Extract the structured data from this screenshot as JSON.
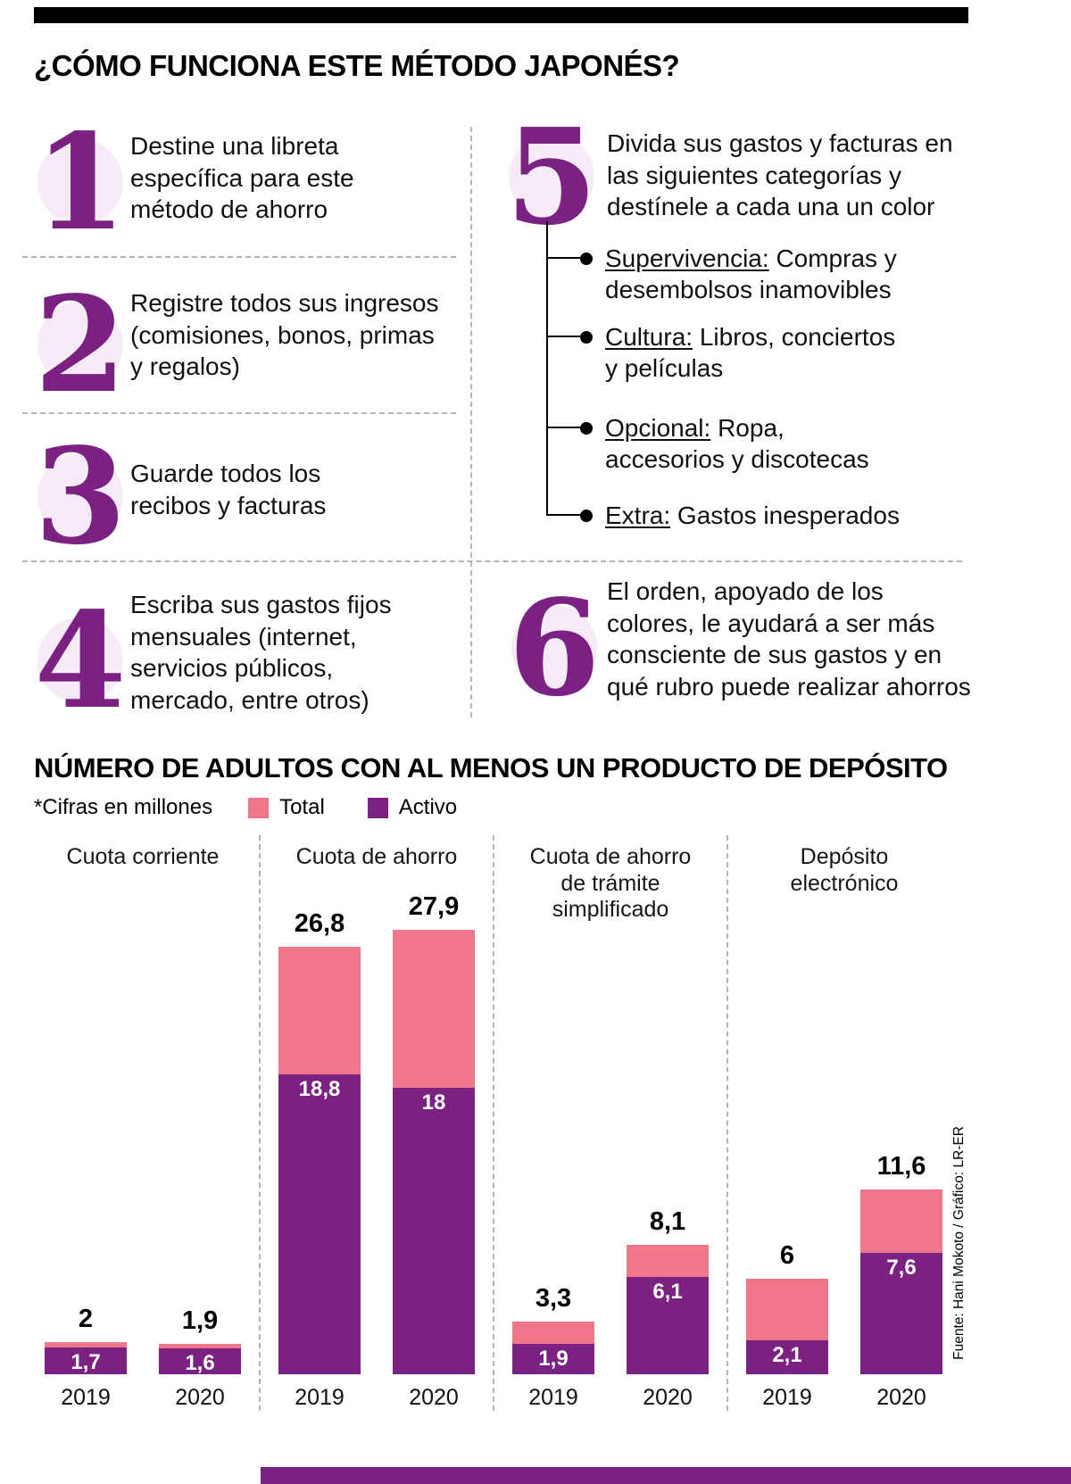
{
  "header": {
    "title": "¿CÓMO FUNCIONA ESTE MÉTODO JAPONÉS?"
  },
  "steps": [
    {
      "num": "1",
      "text": "Destine una libreta específica para este método de ahorro"
    },
    {
      "num": "2",
      "text": "Registre todos sus ingresos (comisiones, bonos, primas y regalos)"
    },
    {
      "num": "3",
      "text": "Guarde todos los recibos y facturas"
    },
    {
      "num": "4",
      "text": "Escriba sus gastos fijos mensuales (internet, servicios públicos, mercado, entre otros)"
    },
    {
      "num": "5",
      "text": "Divida sus gastos y facturas en las siguientes categorías y destínele a cada una un color",
      "bullets": [
        {
          "label": "Supervivencia:",
          "text": "Compras y desembolsos inamovibles"
        },
        {
          "label": "Cultura:",
          "text": "Libros, conciertos y películas"
        },
        {
          "label": "Opcional:",
          "text": "Ropa, accesorios y discotecas"
        },
        {
          "label": "Extra:",
          "text": "Gastos inesperados"
        }
      ]
    },
    {
      "num": "6",
      "text": "El orden, apoyado de los colores, le ayudará a ser más consciente de sus gastos y en qué rubro puede realizar ahorros"
    }
  ],
  "chart_data": {
    "type": "bar",
    "title": "NÚMERO DE ADULTOS CON AL MENOS UN PRODUCTO DE DEPÓSITO",
    "note": "*Cifras en millones",
    "legend": [
      {
        "name": "Total",
        "color": "#f0768b"
      },
      {
        "name": "Activo",
        "color": "#7a2182"
      }
    ],
    "legend_position": "top",
    "grid": false,
    "ylim": [
      0,
      28
    ],
    "decimal_separator": ",",
    "groups": [
      {
        "category": "Cuota corriente",
        "bars": [
          {
            "year": "2019",
            "total": 2,
            "activo": 1.7
          },
          {
            "year": "2020",
            "total": 1.9,
            "activo": 1.6
          }
        ]
      },
      {
        "category": "Cuota de ahorro",
        "bars": [
          {
            "year": "2019",
            "total": 26.8,
            "activo": 18.8
          },
          {
            "year": "2020",
            "total": 27.9,
            "activo": 18
          }
        ]
      },
      {
        "category": "Cuota de ahorro de trámite simplificado",
        "bars": [
          {
            "year": "2019",
            "total": 3.3,
            "activo": 1.9
          },
          {
            "year": "2020",
            "total": 8.1,
            "activo": 6.1
          }
        ]
      },
      {
        "category": "Depósito electrónico",
        "bars": [
          {
            "year": "2019",
            "total": 6,
            "activo": 2.1
          },
          {
            "year": "2020",
            "total": 11.6,
            "activo": 7.6
          }
        ]
      }
    ]
  },
  "source": "Fuente: Hani Mokoto / Gráfico: LR-ER",
  "colors": {
    "purple": "#7a2182",
    "pink": "#f0768b",
    "number_circle": "#f5eaf6",
    "top_bar": "#000000"
  }
}
